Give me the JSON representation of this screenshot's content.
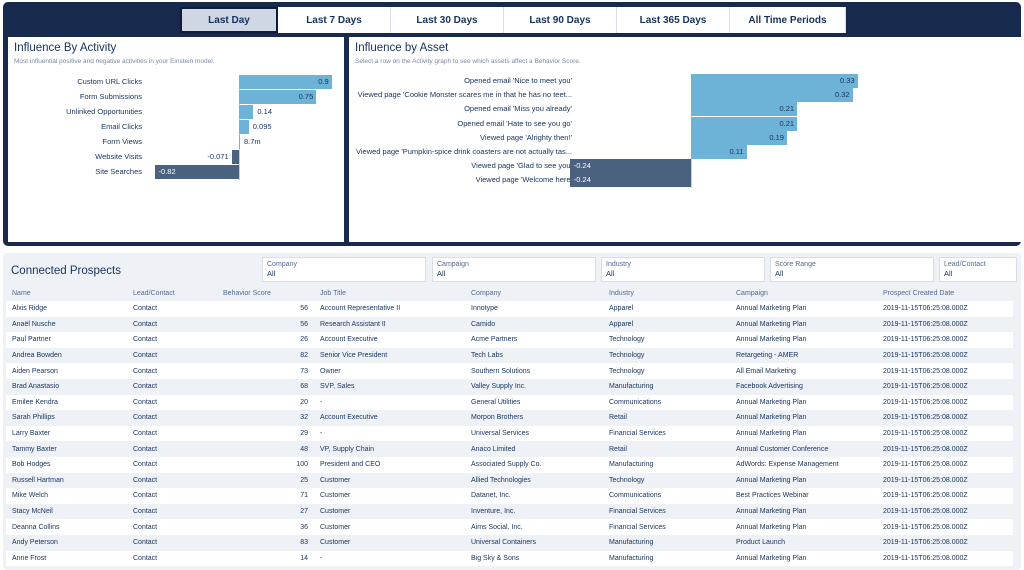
{
  "time_tabs": [
    "Last Day",
    "Last 7 Days",
    "Last 30 Days",
    "Last 90 Days",
    "Last 365 Days",
    "All Time Periods"
  ],
  "active_tab_index": 0,
  "activity": {
    "title": "Influence By Activity",
    "subtitle": "Most influential positive and negative activities in your Einstein model.",
    "rows": [
      {
        "label": "Custom URL Clicks",
        "value": 0.9,
        "display": "0.9"
      },
      {
        "label": "Form Submissions",
        "value": 0.75,
        "display": "0.75"
      },
      {
        "label": "Unlinked Opportunities",
        "value": 0.14,
        "display": "0.14"
      },
      {
        "label": "Email Clicks",
        "value": 0.095,
        "display": "0.095"
      },
      {
        "label": "Form Views",
        "value": 0.0087,
        "display": "8.7m"
      },
      {
        "label": "Website Visits",
        "value": -0.071,
        "display": "-0.071"
      },
      {
        "label": "Site Searches",
        "value": -0.82,
        "display": "-0.82"
      }
    ]
  },
  "asset": {
    "title": "Influence by Asset",
    "subtitle": "Select a row on the Activity graph to see which assets affect a Behavior Score.",
    "rows": [
      {
        "label": "Opened email 'Nice to meet you'",
        "value": 0.33,
        "display": "0.33"
      },
      {
        "label": "Viewed page 'Cookie Monster scares me in that he has no teet...",
        "value": 0.32,
        "display": "0.32"
      },
      {
        "label": "Opened email 'Miss you already'",
        "value": 0.21,
        "display": "0.21"
      },
      {
        "label": "Opened email 'Hate to see you go'",
        "value": 0.21,
        "display": "0.21"
      },
      {
        "label": "Viewed page 'Alrighty then!'",
        "value": 0.19,
        "display": "0.19"
      },
      {
        "label": "Viewed page 'Pumpkin-spice drink coasters are not actually tas...",
        "value": 0.11,
        "display": "0.11"
      },
      {
        "label": "Viewed page 'Glad to see you'",
        "value": -0.24,
        "display": "-0.24"
      },
      {
        "label": "Viewed page 'Welcome here'",
        "value": -0.24,
        "display": "-0.24"
      }
    ]
  },
  "prospects": {
    "title": "Connected Prospects",
    "filters": [
      {
        "label": "Company",
        "value": "All"
      },
      {
        "label": "Campaign",
        "value": "All"
      },
      {
        "label": "Industry",
        "value": "All"
      },
      {
        "label": "Score Range",
        "value": "All"
      },
      {
        "label": "Lead/Contact",
        "value": "All"
      }
    ],
    "columns": [
      "Name",
      "Lead/Contact",
      "Behavior Score",
      "Job Title",
      "Company",
      "Industry",
      "Campaign",
      "Prospect Created Date"
    ],
    "rows": [
      [
        "Alxis Ridge",
        "Contact",
        "56",
        "Account Representative II",
        "Innotype",
        "Apparel",
        "Annual Marketing Plan",
        "2019-11-15T06:25:08.000Z"
      ],
      [
        "Anaël Nusche",
        "Contact",
        "56",
        "Research Assistant II",
        "Camido",
        "Apparel",
        "Annual Marketing Plan",
        "2019-11-15T06:25:08.000Z"
      ],
      [
        "Paul Partner",
        "Contact",
        "26",
        "Account Executive",
        "Acme Partners",
        "Technology",
        "Annual Marketing Plan",
        "2019-11-15T06:25:08.000Z"
      ],
      [
        "Andrea Bowden",
        "Contact",
        "82",
        "Senior Vice President",
        "Tech Labs",
        "Technology",
        "Retargeting - AMER",
        "2019-11-15T06:25:08.000Z"
      ],
      [
        "Aiden Pearson",
        "Contact",
        "73",
        "Owner",
        "Southern Solutions",
        "Technology",
        "All Email Marketing",
        "2019-11-15T06:25:08.000Z"
      ],
      [
        "Brad Anastasio",
        "Contact",
        "68",
        "SVP, Sales",
        "Valley Supply Inc.",
        "Manufacturing",
        "Facebook Advertising",
        "2019-11-15T06:25:08.000Z"
      ],
      [
        "Emilee Kendra",
        "Contact",
        "20",
        "-",
        "General Utilities",
        "Communications",
        "Annual Marketing Plan",
        "2019-11-15T06:25:08.000Z"
      ],
      [
        "Sarah Phillips",
        "Contact",
        "32",
        "Account Executive",
        "Morpon Brothers",
        "Retail",
        "Annual Marketing Plan",
        "2019-11-15T06:25:08.000Z"
      ],
      [
        "Larry Baxter",
        "Contact",
        "29",
        "-",
        "Universal Services",
        "Financial Services",
        "Annual Marketing Plan",
        "2019-11-15T06:25:08.000Z"
      ],
      [
        "Tammy Baxter",
        "Contact",
        "48",
        "VP, Supply Chain",
        "Anaco Limited",
        "Retail",
        "Annual Customer Conference",
        "2019-11-15T06:25:08.000Z"
      ],
      [
        "Bob Hodges",
        "Contact",
        "100",
        "President and CEO",
        "Associated Supply Co.",
        "Manufacturing",
        "AdWords: Expense Management",
        "2019-11-15T06:25:08.000Z"
      ],
      [
        "Russell Hartman",
        "Contact",
        "25",
        "Customer",
        "Allied Technologies",
        "Technology",
        "Annual Marketing Plan",
        "2019-11-15T06:25:08.000Z"
      ],
      [
        "Mike Welch",
        "Contact",
        "71",
        "Customer",
        "Datanet, Inc.",
        "Communications",
        "Best Practices Webinar",
        "2019-11-15T06:25:08.000Z"
      ],
      [
        "Stacy McNeil",
        "Contact",
        "27",
        "Customer",
        "Inventure, Inc.",
        "Financial Services",
        "Annual Marketing Plan",
        "2019-11-15T06:25:08.000Z"
      ],
      [
        "Deanna Collins",
        "Contact",
        "36",
        "Customer",
        "Aims Social, Inc.",
        "Financial Services",
        "Annual Marketing Plan",
        "2019-11-15T06:25:08.000Z"
      ],
      [
        "Andy Peterson",
        "Contact",
        "83",
        "Customer",
        "Universal Containers",
        "Manufacturing",
        "Product Launch",
        "2019-11-15T06:25:08.000Z"
      ],
      [
        "Anne Frost",
        "Contact",
        "14",
        "-",
        "Big Sky & Sons",
        "Manufacturing",
        "Annual Marketing Plan",
        "2019-11-15T06:25:08.000Z"
      ]
    ]
  }
}
